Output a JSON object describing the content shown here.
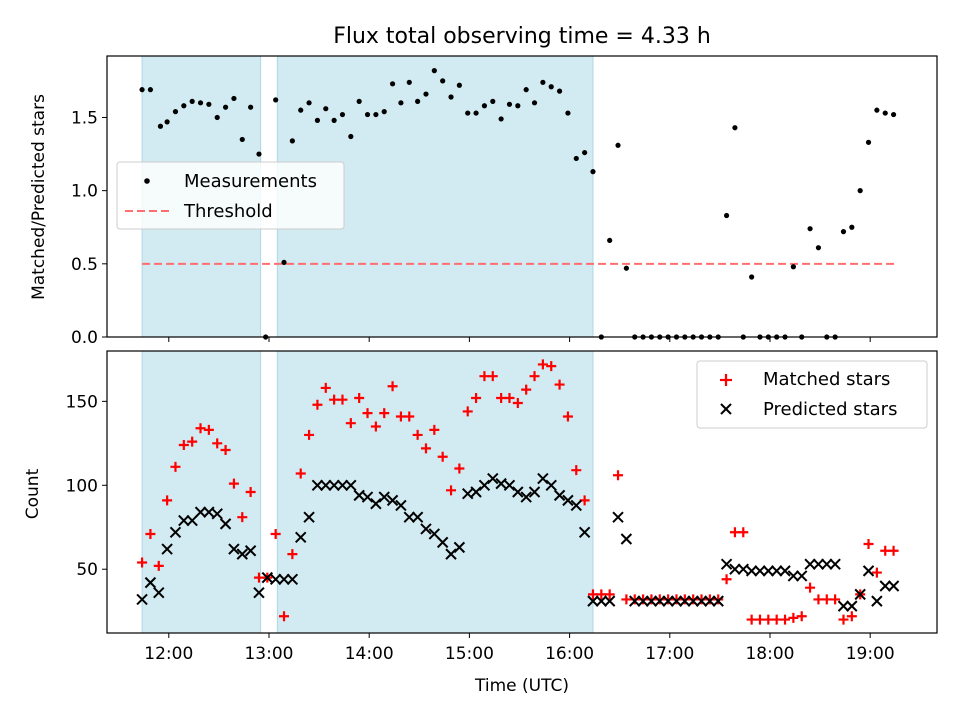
{
  "figure": {
    "title": "Flux total observing time = 4.33 h",
    "xlabel": "Time (UTC)"
  },
  "colors": {
    "shade": "#add8e6",
    "measurement": "#000000",
    "threshold": "#ff6f6f",
    "matched": "#ff0000",
    "predicted": "#000000"
  },
  "chart_data": [
    {
      "type": "scatter",
      "ylabel": "Matched/Predicted stars",
      "xlim": [
        "11:23",
        "19:40"
      ],
      "ylim": [
        0,
        1.92
      ],
      "yticks": [
        0.0,
        0.5,
        1.0,
        1.5
      ],
      "ytick_labels": [
        "0.0",
        "0.5",
        "1.0",
        "1.5"
      ],
      "grid": false,
      "legend_location": "center-left",
      "shaded_intervals": [
        [
          "11:44",
          "12:55"
        ],
        [
          "13:05",
          "16:14"
        ]
      ],
      "threshold": {
        "name": "Threshold",
        "y": 0.5,
        "x_range": [
          "11:44",
          "19:16"
        ]
      },
      "series": [
        {
          "name": "Measurements",
          "x": [
            "11:44",
            "11:49",
            "11:55",
            "11:59",
            "12:04",
            "12:09",
            "12:14",
            "12:19",
            "12:24",
            "12:29",
            "12:34",
            "12:39",
            "12:44",
            "12:49",
            "12:54",
            "12:58",
            "13:04",
            "13:09",
            "13:14",
            "13:19",
            "13:24",
            "13:29",
            "13:34",
            "13:39",
            "13:44",
            "13:49",
            "13:54",
            "13:59",
            "14:04",
            "14:09",
            "14:14",
            "14:19",
            "14:24",
            "14:29",
            "14:34",
            "14:39",
            "14:44",
            "14:49",
            "14:54",
            "14:59",
            "15:04",
            "15:09",
            "15:14",
            "15:19",
            "15:24",
            "15:29",
            "15:34",
            "15:39",
            "15:44",
            "15:49",
            "15:54",
            "15:59",
            "16:04",
            "16:09",
            "16:14",
            "16:19",
            "16:24",
            "16:29",
            "16:34",
            "16:39",
            "16:44",
            "16:49",
            "16:54",
            "16:59",
            "17:04",
            "17:09",
            "17:14",
            "17:19",
            "17:24",
            "17:29",
            "17:34",
            "17:39",
            "17:44",
            "17:49",
            "17:54",
            "17:59",
            "18:04",
            "18:09",
            "18:14",
            "18:19",
            "18:24",
            "18:29",
            "18:34",
            "18:39",
            "18:44",
            "18:49",
            "18:54",
            "18:59",
            "19:04",
            "19:09",
            "19:14"
          ],
          "y": [
            1.69,
            1.69,
            1.44,
            1.47,
            1.54,
            1.58,
            1.61,
            1.6,
            1.59,
            1.5,
            1.57,
            1.63,
            1.35,
            1.57,
            1.25,
            0.0,
            1.62,
            0.51,
            1.34,
            1.55,
            1.6,
            1.48,
            1.56,
            1.48,
            1.52,
            1.37,
            1.61,
            1.52,
            1.52,
            1.54,
            1.73,
            1.6,
            1.74,
            1.61,
            1.66,
            1.82,
            1.75,
            1.64,
            1.72,
            1.53,
            1.53,
            1.58,
            1.61,
            1.49,
            1.59,
            1.58,
            1.69,
            1.6,
            1.74,
            1.71,
            1.68,
            1.53,
            1.22,
            1.26,
            1.13,
            0.0,
            0.66,
            1.31,
            0.47,
            0.0,
            0.0,
            0.0,
            0.0,
            0.0,
            0.0,
            0.0,
            0.0,
            0.0,
            0.0,
            0.0,
            0.83,
            1.43,
            0.0,
            0.41,
            0.0,
            0.0,
            0.0,
            0.0,
            0.48,
            0.0,
            0.74,
            0.61,
            0.0,
            0.0,
            0.72,
            0.75,
            1.0,
            1.33,
            1.55,
            1.53,
            1.52
          ]
        }
      ]
    },
    {
      "type": "scatter",
      "ylabel": "Count",
      "xlim": [
        "11:23",
        "19:40"
      ],
      "ylim": [
        12,
        180
      ],
      "yticks": [
        50,
        100,
        150
      ],
      "ytick_labels": [
        "50",
        "100",
        "150"
      ],
      "xticks": [
        "12:00",
        "13:00",
        "14:00",
        "15:00",
        "16:00",
        "17:00",
        "18:00",
        "19:00"
      ],
      "xtick_labels": [
        "12:00",
        "13:00",
        "14:00",
        "15:00",
        "16:00",
        "17:00",
        "18:00",
        "19:00"
      ],
      "grid": false,
      "legend_location": "upper-right",
      "shaded_intervals": [
        [
          "11:44",
          "12:55"
        ],
        [
          "13:05",
          "16:14"
        ]
      ],
      "series": [
        {
          "name": "Matched stars",
          "marker": "+",
          "x": [
            "11:44",
            "11:49",
            "11:54",
            "11:59",
            "12:04",
            "12:09",
            "12:14",
            "12:19",
            "12:24",
            "12:29",
            "12:34",
            "12:39",
            "12:44",
            "12:49",
            "12:54",
            "12:59",
            "13:04",
            "13:09",
            "13:14",
            "13:19",
            "13:24",
            "13:29",
            "13:34",
            "13:39",
            "13:44",
            "13:49",
            "13:54",
            "13:59",
            "14:04",
            "14:09",
            "14:14",
            "14:19",
            "14:24",
            "14:29",
            "14:34",
            "14:39",
            "14:44",
            "14:49",
            "14:54",
            "14:59",
            "15:04",
            "15:09",
            "15:14",
            "15:19",
            "15:24",
            "15:29",
            "15:34",
            "15:39",
            "15:44",
            "15:49",
            "15:54",
            "15:59",
            "16:04",
            "16:09",
            "16:14",
            "16:19",
            "16:24",
            "16:29",
            "16:34",
            "16:39",
            "16:44",
            "16:49",
            "16:54",
            "16:59",
            "17:04",
            "17:09",
            "17:14",
            "17:19",
            "17:24",
            "17:29",
            "17:34",
            "17:39",
            "17:44",
            "17:49",
            "17:54",
            "17:59",
            "18:04",
            "18:09",
            "18:14",
            "18:19",
            "18:24",
            "18:29",
            "18:34",
            "18:39",
            "18:44",
            "18:49",
            "18:54",
            "18:59",
            "19:04",
            "19:09",
            "19:14"
          ],
          "y": [
            54,
            71,
            52,
            91,
            111,
            124,
            126,
            134,
            133,
            125,
            121,
            101,
            81,
            96,
            45,
            45,
            71,
            22,
            59,
            107,
            130,
            148,
            158,
            151,
            151,
            137,
            152,
            143,
            135,
            143,
            159,
            141,
            141,
            130,
            122,
            133,
            117,
            97,
            110,
            144,
            152,
            165,
            165,
            152,
            152,
            149,
            157,
            165,
            172,
            171,
            160,
            141,
            109,
            91,
            35,
            35,
            35,
            106,
            32,
            32,
            32,
            32,
            32,
            32,
            32,
            32,
            32,
            32,
            32,
            32,
            44,
            72,
            72,
            20,
            20,
            20,
            20,
            20,
            21,
            22,
            39,
            32,
            32,
            32,
            20,
            22,
            35,
            65,
            48,
            61,
            61
          ]
        },
        {
          "name": "Predicted stars",
          "marker": "x",
          "x": [
            "11:44",
            "11:49",
            "11:54",
            "11:59",
            "12:04",
            "12:09",
            "12:14",
            "12:19",
            "12:24",
            "12:29",
            "12:34",
            "12:39",
            "12:44",
            "12:49",
            "12:54",
            "12:59",
            "13:04",
            "13:09",
            "13:14",
            "13:19",
            "13:24",
            "13:29",
            "13:34",
            "13:39",
            "13:44",
            "13:49",
            "13:54",
            "13:59",
            "14:04",
            "14:09",
            "14:14",
            "14:19",
            "14:24",
            "14:29",
            "14:34",
            "14:39",
            "14:44",
            "14:49",
            "14:54",
            "14:59",
            "15:04",
            "15:09",
            "15:14",
            "15:19",
            "15:24",
            "15:29",
            "15:34",
            "15:39",
            "15:44",
            "15:49",
            "15:54",
            "15:59",
            "16:04",
            "16:09",
            "16:14",
            "16:19",
            "16:24",
            "16:29",
            "16:34",
            "16:39",
            "16:44",
            "16:49",
            "16:54",
            "16:59",
            "17:04",
            "17:09",
            "17:14",
            "17:19",
            "17:24",
            "17:29",
            "17:34",
            "17:39",
            "17:44",
            "17:49",
            "17:54",
            "17:59",
            "18:04",
            "18:09",
            "18:14",
            "18:19",
            "18:24",
            "18:29",
            "18:34",
            "18:39",
            "18:44",
            "18:49",
            "18:54",
            "18:59",
            "19:04",
            "19:09",
            "19:14"
          ],
          "y": [
            32,
            42,
            36,
            62,
            72,
            79,
            79,
            84,
            84,
            83,
            77,
            62,
            59,
            61,
            36,
            45,
            44,
            44,
            44,
            69,
            81,
            100,
            100,
            100,
            100,
            100,
            94,
            93,
            89,
            93,
            91,
            88,
            81,
            81,
            74,
            71,
            66,
            59,
            63,
            95,
            96,
            100,
            104,
            101,
            100,
            96,
            93,
            96,
            104,
            100,
            94,
            91,
            88,
            72,
            31,
            31,
            31,
            81,
            68,
            31,
            31,
            31,
            31,
            31,
            31,
            31,
            31,
            31,
            31,
            31,
            53,
            50,
            50,
            49,
            49,
            49,
            49,
            49,
            46,
            46,
            53,
            53,
            53,
            53,
            28,
            28,
            35,
            49,
            31,
            40,
            40
          ]
        }
      ]
    }
  ]
}
